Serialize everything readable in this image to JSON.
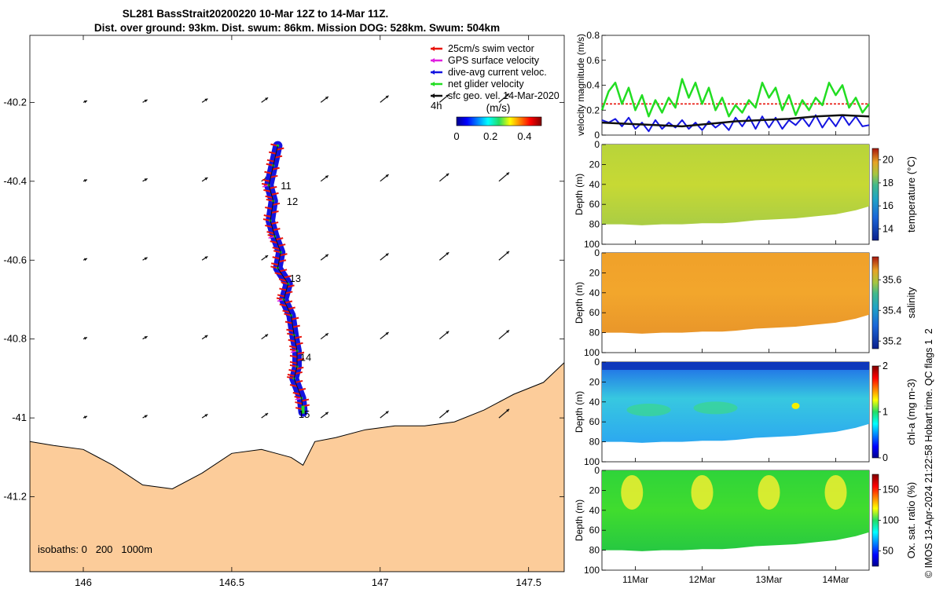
{
  "title": {
    "line1": "SL281 BassStrait20200220 10-Mar 12Z to 14-Mar 11Z.",
    "line2": "Dist. over ground: 93km. Dist. swum: 86km. Mission DOG: 528km. Swum: 504km"
  },
  "footer_text": "© IMOS 13-Apr-2024 21:22:58 Hobart time. QC flags 1  2",
  "colors": {
    "land": "#fccc9a",
    "swim_vector": "#e8140c",
    "gps_velocity": "#e020e0",
    "dive_avg_current": "#1414e0",
    "net_glider": "#22dd22",
    "geo_velocity": "#111111"
  },
  "map": {
    "xlim": [
      145.82,
      147.62
    ],
    "ylim": [
      -41.39,
      -40.03
    ],
    "xticks": [
      {
        "value": 146,
        "label": "146"
      },
      {
        "value": 146.5,
        "label": "146.5"
      },
      {
        "value": 147,
        "label": "147"
      },
      {
        "value": 147.5,
        "label": "147.5"
      }
    ],
    "yticks": [
      {
        "value": -40.2,
        "label": "-40.2"
      },
      {
        "value": -40.4,
        "label": "-40.4"
      },
      {
        "value": -40.6,
        "label": "-40.6"
      },
      {
        "value": -40.8,
        "label": "-40.8"
      },
      {
        "value": -41,
        "label": "-41"
      },
      {
        "value": -41.2,
        "label": "-41.2"
      }
    ],
    "legend": [
      {
        "label": "25cm/s swim vector",
        "color": "#e8140c"
      },
      {
        "label": "GPS surface velocity",
        "color": "#e020e0"
      },
      {
        "label": "dive-avg current veloc.",
        "color": "#1414e0"
      },
      {
        "label": "net glider velocity",
        "color": "#22dd22"
      },
      {
        "label": "sfc geo. vel. 14-Mar-2020",
        "color": "#111111"
      }
    ],
    "legend_extra": "4h",
    "colorbar": {
      "label": "(m/s)",
      "range": [
        0,
        0.5
      ],
      "ticks": [
        {
          "value": 0,
          "label": "0"
        },
        {
          "value": 0.2,
          "label": "0.2"
        },
        {
          "value": 0.4,
          "label": "0.4"
        }
      ]
    },
    "isobaths_label": "isobaths: 0   200   1000m",
    "day_labels": [
      {
        "label": "11",
        "lon": 146.665,
        "lat": -40.42
      },
      {
        "label": "12",
        "lon": 146.685,
        "lat": -40.46
      },
      {
        "label": "13",
        "lon": 146.695,
        "lat": -40.655
      },
      {
        "label": "14",
        "lon": 146.73,
        "lat": -40.855
      },
      {
        "label": "15",
        "lon": 146.725,
        "lat": -41.0
      }
    ],
    "track": [
      [
        146.655,
        -40.31
      ],
      [
        146.64,
        -40.36
      ],
      [
        146.625,
        -40.41
      ],
      [
        146.64,
        -40.45
      ],
      [
        146.63,
        -40.5
      ],
      [
        146.645,
        -40.54
      ],
      [
        146.665,
        -40.58
      ],
      [
        146.655,
        -40.62
      ],
      [
        146.69,
        -40.66
      ],
      [
        146.675,
        -40.7
      ],
      [
        146.7,
        -40.74
      ],
      [
        146.71,
        -40.79
      ],
      [
        146.72,
        -40.83
      ],
      [
        146.72,
        -40.87
      ],
      [
        146.71,
        -40.9
      ],
      [
        146.735,
        -40.95
      ],
      [
        146.74,
        -40.985
      ]
    ],
    "geo_vectors": {
      "lons": [
        146.0,
        146.2,
        146.4,
        146.6,
        146.8,
        147.0,
        147.2,
        147.4
      ],
      "lats": [
        -40.2,
        -40.4,
        -40.6,
        -40.8,
        -41.0
      ],
      "u_ms": 0.12,
      "v_ms": 0.02
    },
    "coast": [
      [
        145.82,
        -41.06
      ],
      [
        145.9,
        -41.07
      ],
      [
        146.0,
        -41.08
      ],
      [
        146.1,
        -41.12
      ],
      [
        146.2,
        -41.17
      ],
      [
        146.3,
        -41.18
      ],
      [
        146.4,
        -41.14
      ],
      [
        146.5,
        -41.09
      ],
      [
        146.6,
        -41.08
      ],
      [
        146.65,
        -41.09
      ],
      [
        146.7,
        -41.1
      ],
      [
        146.74,
        -41.12
      ],
      [
        146.78,
        -41.06
      ],
      [
        146.85,
        -41.05
      ],
      [
        146.95,
        -41.03
      ],
      [
        147.05,
        -41.02
      ],
      [
        147.15,
        -41.02
      ],
      [
        147.25,
        -41.01
      ],
      [
        147.35,
        -40.98
      ],
      [
        147.45,
        -40.94
      ],
      [
        147.55,
        -40.91
      ],
      [
        147.62,
        -40.86
      ]
    ]
  },
  "vel_panel": {
    "ylabel": "velocity magnitude (m/s)",
    "ylim": [
      0,
      0.8
    ],
    "yticks": [
      {
        "value": 0,
        "label": "0"
      },
      {
        "value": 0.2,
        "label": "0.2"
      },
      {
        "value": 0.4,
        "label": "0.4"
      },
      {
        "value": 0.6,
        "label": "0.6"
      },
      {
        "value": 0.8,
        "label": "0.8"
      }
    ],
    "swim_level": 0.25,
    "green": [
      [
        0,
        0.2
      ],
      [
        0.1,
        0.35
      ],
      [
        0.2,
        0.42
      ],
      [
        0.3,
        0.25
      ],
      [
        0.4,
        0.38
      ],
      [
        0.5,
        0.2
      ],
      [
        0.6,
        0.32
      ],
      [
        0.7,
        0.15
      ],
      [
        0.8,
        0.28
      ],
      [
        0.9,
        0.18
      ],
      [
        1.0,
        0.3
      ],
      [
        1.1,
        0.22
      ],
      [
        1.2,
        0.45
      ],
      [
        1.3,
        0.3
      ],
      [
        1.4,
        0.42
      ],
      [
        1.5,
        0.25
      ],
      [
        1.6,
        0.38
      ],
      [
        1.7,
        0.2
      ],
      [
        1.8,
        0.3
      ],
      [
        1.9,
        0.15
      ],
      [
        2.0,
        0.24
      ],
      [
        2.1,
        0.18
      ],
      [
        2.2,
        0.28
      ],
      [
        2.3,
        0.22
      ],
      [
        2.4,
        0.42
      ],
      [
        2.5,
        0.3
      ],
      [
        2.6,
        0.38
      ],
      [
        2.7,
        0.2
      ],
      [
        2.8,
        0.32
      ],
      [
        2.9,
        0.16
      ],
      [
        3.0,
        0.28
      ],
      [
        3.1,
        0.2
      ],
      [
        3.2,
        0.3
      ],
      [
        3.3,
        0.24
      ],
      [
        3.4,
        0.42
      ],
      [
        3.5,
        0.32
      ],
      [
        3.6,
        0.4
      ],
      [
        3.7,
        0.22
      ],
      [
        3.8,
        0.3
      ],
      [
        3.9,
        0.18
      ],
      [
        4.0,
        0.25
      ]
    ],
    "blue": [
      [
        0,
        0.12
      ],
      [
        0.1,
        0.1
      ],
      [
        0.2,
        0.13
      ],
      [
        0.3,
        0.07
      ],
      [
        0.4,
        0.14
      ],
      [
        0.5,
        0.05
      ],
      [
        0.6,
        0.1
      ],
      [
        0.7,
        0.03
      ],
      [
        0.8,
        0.12
      ],
      [
        0.9,
        0.05
      ],
      [
        1.0,
        0.1
      ],
      [
        1.1,
        0.06
      ],
      [
        1.2,
        0.12
      ],
      [
        1.3,
        0.05
      ],
      [
        1.4,
        0.1
      ],
      [
        1.5,
        0.04
      ],
      [
        1.6,
        0.11
      ],
      [
        1.7,
        0.06
      ],
      [
        1.8,
        0.1
      ],
      [
        1.9,
        0.04
      ],
      [
        2.0,
        0.14
      ],
      [
        2.1,
        0.07
      ],
      [
        2.2,
        0.15
      ],
      [
        2.3,
        0.05
      ],
      [
        2.4,
        0.15
      ],
      [
        2.5,
        0.06
      ],
      [
        2.6,
        0.14
      ],
      [
        2.7,
        0.05
      ],
      [
        2.8,
        0.12
      ],
      [
        2.9,
        0.08
      ],
      [
        3.0,
        0.14
      ],
      [
        3.1,
        0.07
      ],
      [
        3.2,
        0.16
      ],
      [
        3.3,
        0.06
      ],
      [
        3.4,
        0.14
      ],
      [
        3.5,
        0.07
      ],
      [
        3.6,
        0.16
      ],
      [
        3.7,
        0.08
      ],
      [
        3.8,
        0.15
      ],
      [
        3.9,
        0.07
      ],
      [
        4.0,
        0.08
      ]
    ],
    "black": [
      [
        0,
        0.1
      ],
      [
        0.4,
        0.09
      ],
      [
        0.8,
        0.08
      ],
      [
        1.2,
        0.07
      ],
      [
        1.6,
        0.09
      ],
      [
        2.0,
        0.11
      ],
      [
        2.4,
        0.12
      ],
      [
        2.8,
        0.13
      ],
      [
        3.2,
        0.15
      ],
      [
        3.6,
        0.16
      ],
      [
        4.0,
        0.15
      ]
    ]
  },
  "time_axis": {
    "days": 4,
    "ticks": [
      {
        "value": 0.5,
        "label": "11Mar"
      },
      {
        "value": 1.5,
        "label": "12Mar"
      },
      {
        "value": 2.5,
        "label": "13Mar"
      },
      {
        "value": 3.5,
        "label": "14Mar"
      }
    ]
  },
  "section_panels": [
    {
      "name": "temperature",
      "cbar_label": "temperature (°C)",
      "range": [
        13,
        21
      ],
      "ticks": [
        {
          "value": 14,
          "label": "14"
        },
        {
          "value": 16,
          "label": "16"
        },
        {
          "value": 18,
          "label": "18"
        },
        {
          "value": 20,
          "label": "20"
        }
      ],
      "cmap": "parula"
    },
    {
      "name": "salinity",
      "cbar_label": "salinity",
      "range": [
        35.15,
        35.75
      ],
      "ticks": [
        {
          "value": 35.2,
          "label": "35.2"
        },
        {
          "value": 35.4,
          "label": "35.4"
        },
        {
          "value": 35.6,
          "label": "35.6"
        }
      ],
      "cmap": "parula"
    },
    {
      "name": "chl-a",
      "cbar_label": "chl-a (mg m-3)",
      "range": [
        0,
        2
      ],
      "ticks": [
        {
          "value": 0,
          "label": "0"
        },
        {
          "value": 1,
          "label": "1"
        },
        {
          "value": 2,
          "label": "2"
        }
      ],
      "cmap": "jet"
    },
    {
      "name": "oxygen",
      "cbar_label": "Ox. sat. ratio (%)",
      "range": [
        25,
        175
      ],
      "ticks": [
        {
          "value": 50,
          "label": "50"
        },
        {
          "value": 100,
          "label": "100"
        },
        {
          "value": 150,
          "label": "150"
        }
      ],
      "cmap": "jet"
    }
  ],
  "section_common": {
    "ylabel": "Depth (m)",
    "ylim": [
      0,
      100
    ],
    "yticks": [
      {
        "value": 0,
        "label": "0"
      },
      {
        "value": 20,
        "label": "20"
      },
      {
        "value": 40,
        "label": "40"
      },
      {
        "value": 60,
        "label": "60"
      },
      {
        "value": 80,
        "label": "80"
      },
      {
        "value": 100,
        "label": "100"
      }
    ],
    "bottom_depth": [
      [
        0,
        80
      ],
      [
        0.3,
        80
      ],
      [
        0.6,
        81
      ],
      [
        0.9,
        80
      ],
      [
        1.2,
        80
      ],
      [
        1.5,
        79
      ],
      [
        1.8,
        79
      ],
      [
        2.0,
        78
      ],
      [
        2.3,
        76
      ],
      [
        2.6,
        75
      ],
      [
        2.9,
        74
      ],
      [
        3.2,
        72
      ],
      [
        3.5,
        70
      ],
      [
        3.8,
        66
      ],
      [
        4.0,
        62
      ]
    ]
  },
  "chart_data": [
    {
      "type": "scatter",
      "title": "SL281 BassStrait20200220 10-Mar 12Z to 14-Mar 11Z.",
      "subtitle": "Dist. over ground: 93km. Dist. swum: 86km. Mission DOG: 528km. Swum: 504km",
      "xlabel": "",
      "ylabel": "",
      "xlim": [
        145.82,
        147.62
      ],
      "ylim": [
        -41.39,
        -40.03
      ],
      "legend_position": "top-right",
      "series": [
        {
          "name": "25cm/s swim vector"
        },
        {
          "name": "GPS surface velocity"
        },
        {
          "name": "dive-avg current veloc."
        },
        {
          "name": "net glider velocity"
        },
        {
          "name": "sfc geo. vel. 14-Mar-2020"
        }
      ]
    },
    {
      "type": "line",
      "ylabel": "velocity magnitude (m/s)",
      "ylim": [
        0,
        0.8
      ],
      "categories": [
        "11Mar",
        "12Mar",
        "13Mar",
        "14Mar"
      ]
    },
    {
      "type": "heatmap",
      "ylabel": "Depth (m)",
      "ylim": [
        0,
        100
      ],
      "colorbar_labels": [
        "temperature (°C)",
        "salinity",
        "chl-a (mg m-3)",
        "Ox. sat. ratio (%)"
      ]
    }
  ]
}
